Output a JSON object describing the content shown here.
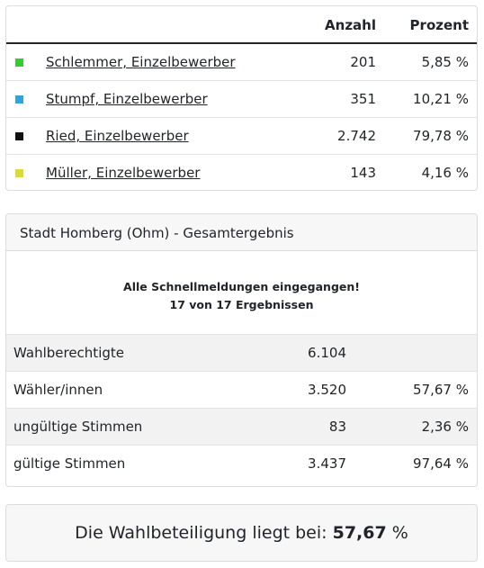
{
  "candidates": {
    "header": {
      "count": "Anzahl",
      "percent": "Prozent"
    },
    "rows": [
      {
        "name": "Schlemmer, Einzelbewerber",
        "count": "201",
        "percent": "5,85 %",
        "color": "#33cc33"
      },
      {
        "name": "Stumpf, Einzelbewerber",
        "count": "351",
        "percent": "10,21 %",
        "color": "#33a3dc"
      },
      {
        "name": "Ried, Einzelbewerber",
        "count": "2.742",
        "percent": "79,78 %",
        "color": "#111111"
      },
      {
        "name": "Müller, Einzelbewerber",
        "count": "143",
        "percent": "4,16 %",
        "color": "#dada3a"
      }
    ]
  },
  "result": {
    "title": "Stadt Homberg (Ohm) - Gesamtergebnis",
    "notice_line1": "Alle Schnellmeldungen eingegangen!",
    "notice_line2": "17 von 17 Ergebnissen",
    "rows": [
      {
        "label": "Wahlberechtigte",
        "value": "6.104",
        "percent": ""
      },
      {
        "label": "Wähler/innen",
        "value": "3.520",
        "percent": "57,67 %"
      },
      {
        "label": "ungültige Stimmen",
        "value": "83",
        "percent": "2,36 %"
      },
      {
        "label": "gültige Stimmen",
        "value": "3.437",
        "percent": "97,64 %"
      }
    ]
  },
  "turnout": {
    "text": "Die Wahlbeteiligung liegt bei:",
    "value": "57,67",
    "unit": "%"
  }
}
